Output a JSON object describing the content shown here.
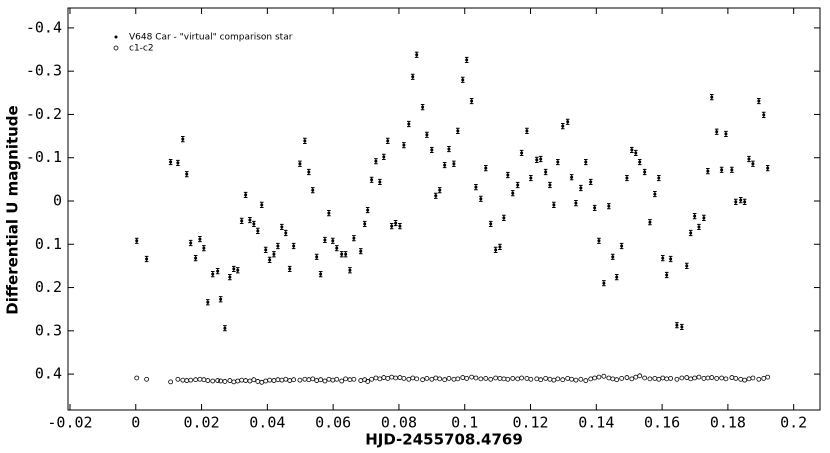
{
  "chart_data": {
    "type": "scatter",
    "xlabel": "HJD-2455708.4769",
    "ylabel": "Differential U magnitude",
    "xlim": [
      -0.0206,
      0.208
    ],
    "ylim": [
      0.483,
      -0.446
    ],
    "xticks": [
      -0.02,
      0,
      0.02,
      0.04,
      0.06,
      0.08,
      0.1,
      0.12,
      0.14,
      0.16,
      0.18,
      0.2
    ],
    "yticks": [
      -0.4,
      -0.3,
      -0.2,
      -0.1,
      0,
      0.1,
      0.2,
      0.3,
      0.4
    ],
    "legend": "upper left",
    "x": [
      0.0003,
      0.0033,
      0.0106,
      0.0128,
      0.0143,
      0.0155,
      0.0167,
      0.0182,
      0.0195,
      0.0207,
      0.0219,
      0.0234,
      0.0249,
      0.0258,
      0.0271,
      0.0286,
      0.0298,
      0.031,
      0.0322,
      0.0334,
      0.0347,
      0.0359,
      0.0371,
      0.0383,
      0.0395,
      0.0407,
      0.042,
      0.0432,
      0.0444,
      0.0456,
      0.0468,
      0.048,
      0.0499,
      0.0514,
      0.0526,
      0.0538,
      0.055,
      0.0562,
      0.0575,
      0.0587,
      0.0599,
      0.0611,
      0.0626,
      0.0638,
      0.0651,
      0.0663,
      0.0684,
      0.0696,
      0.0705,
      0.0717,
      0.073,
      0.0742,
      0.0754,
      0.0766,
      0.0778,
      0.079,
      0.0803,
      0.0815,
      0.083,
      0.0842,
      0.0854,
      0.0872,
      0.0885,
      0.09,
      0.0912,
      0.0924,
      0.0939,
      0.0952,
      0.0967,
      0.0979,
      0.0994,
      0.1006,
      0.1021,
      0.1034,
      0.1049,
      0.1064,
      0.1079,
      0.1094,
      0.1107,
      0.1119,
      0.1131,
      0.1146,
      0.1161,
      0.1173,
      0.1189,
      0.1201,
      0.1219,
      0.1231,
      0.1246,
      0.1259,
      0.1271,
      0.1283,
      0.1298,
      0.1313,
      0.1325,
      0.1338,
      0.1353,
      0.1368,
      0.1383,
      0.1395,
      0.1408,
      0.1423,
      0.1438,
      0.145,
      0.1462,
      0.1477,
      0.1493,
      0.1508,
      0.152,
      0.1532,
      0.1547,
      0.1563,
      0.1578,
      0.159,
      0.1602,
      0.1614,
      0.1626,
      0.1645,
      0.166,
      0.1675,
      0.1687,
      0.1699,
      0.1712,
      0.1727,
      0.1739,
      0.1751,
      0.1766,
      0.1781,
      0.1794,
      0.1812,
      0.1824,
      0.1839,
      0.1851,
      0.1864,
      0.1876,
      0.1894,
      0.1909,
      0.1921
    ],
    "series": [
      {
        "name": "V648 Car - \"virtual\" comparison star",
        "color": "#000000",
        "marker": "filled",
        "error": 0.006,
        "values": [
          0.092,
          0.134,
          -0.09,
          -0.088,
          -0.143,
          -0.062,
          0.097,
          0.132,
          0.088,
          0.109,
          0.234,
          0.169,
          0.162,
          0.227,
          0.294,
          0.176,
          0.157,
          0.16,
          0.046,
          -0.014,
          0.044,
          0.053,
          0.069,
          0.009,
          0.113,
          0.136,
          0.123,
          0.104,
          0.06,
          0.074,
          0.157,
          0.104,
          -0.086,
          -0.139,
          -0.067,
          -0.025,
          0.129,
          0.169,
          0.09,
          0.028,
          0.092,
          0.109,
          0.123,
          0.123,
          0.16,
          0.086,
          0.116,
          0.053,
          0.021,
          -0.049,
          -0.092,
          -0.044,
          -0.102,
          -0.139,
          0.058,
          0.051,
          0.058,
          -0.129,
          -0.178,
          -0.287,
          -0.338,
          -0.217,
          -0.153,
          -0.118,
          -0.012,
          -0.025,
          -0.083,
          -0.12,
          -0.086,
          -0.162,
          -0.28,
          -0.326,
          -0.231,
          -0.032,
          -0.005,
          -0.076,
          0.053,
          0.113,
          0.106,
          0.039,
          -0.06,
          -0.018,
          -0.037,
          -0.111,
          -0.162,
          -0.053,
          -0.095,
          -0.097,
          -0.067,
          -0.037,
          0.009,
          -0.09,
          -0.173,
          -0.183,
          -0.055,
          0.005,
          -0.03,
          -0.09,
          -0.044,
          0.016,
          0.092,
          0.19,
          0.012,
          0.129,
          0.176,
          0.104,
          -0.053,
          -0.118,
          -0.111,
          -0.09,
          -0.067,
          0.049,
          -0.016,
          -0.053,
          0.132,
          0.171,
          0.134,
          0.287,
          0.291,
          0.15,
          0.074,
          0.035,
          0.06,
          0.039,
          -0.069,
          -0.24,
          -0.16,
          -0.072,
          -0.155,
          -0.072,
          0.002,
          -0.002,
          0.002,
          -0.097,
          -0.086,
          -0.231,
          -0.199,
          -0.076
        ]
      },
      {
        "name": "c1-c2",
        "color": "#000000",
        "marker": "open",
        "values": [
          0.409,
          0.412,
          0.418,
          0.412,
          0.414,
          0.415,
          0.414,
          0.413,
          0.412,
          0.413,
          0.415,
          0.416,
          0.415,
          0.416,
          0.417,
          0.415,
          0.418,
          0.416,
          0.414,
          0.415,
          0.416,
          0.413,
          0.417,
          0.419,
          0.416,
          0.414,
          0.415,
          0.413,
          0.414,
          0.412,
          0.415,
          0.413,
          0.414,
          0.412,
          0.413,
          0.411,
          0.415,
          0.413,
          0.416,
          0.412,
          0.414,
          0.412,
          0.416,
          0.411,
          0.413,
          0.412,
          0.415,
          0.413,
          0.417,
          0.412,
          0.409,
          0.411,
          0.408,
          0.41,
          0.407,
          0.409,
          0.408,
          0.41,
          0.412,
          0.409,
          0.411,
          0.413,
          0.41,
          0.412,
          0.409,
          0.411,
          0.413,
          0.41,
          0.412,
          0.411,
          0.408,
          0.41,
          0.407,
          0.409,
          0.411,
          0.41,
          0.412,
          0.409,
          0.41,
          0.411,
          0.412,
          0.41,
          0.411,
          0.409,
          0.41,
          0.412,
          0.411,
          0.413,
          0.41,
          0.412,
          0.414,
          0.411,
          0.413,
          0.41,
          0.412,
          0.414,
          0.412,
          0.415,
          0.411,
          0.409,
          0.407,
          0.405,
          0.409,
          0.411,
          0.413,
          0.41,
          0.408,
          0.411,
          0.407,
          0.404,
          0.409,
          0.411,
          0.41,
          0.412,
          0.409,
          0.411,
          0.41,
          0.412,
          0.409,
          0.408,
          0.411,
          0.409,
          0.407,
          0.41,
          0.409,
          0.408,
          0.41,
          0.409,
          0.411,
          0.408,
          0.41,
          0.412,
          0.414,
          0.411,
          0.409,
          0.412,
          0.41,
          0.407
        ]
      }
    ]
  }
}
